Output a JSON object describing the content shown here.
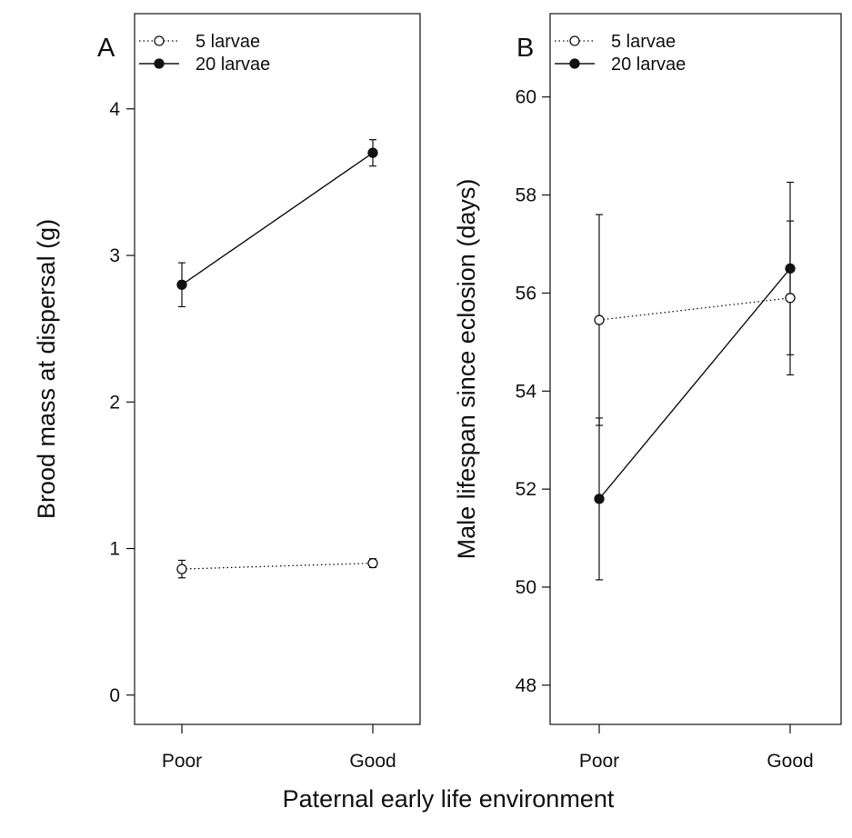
{
  "figure": {
    "xlabel": "Paternal early life environment"
  },
  "chart_data": [
    {
      "type": "line",
      "panel_label": "A",
      "title": "",
      "xlabel": "",
      "ylabel": "Brood mass at dispersal (g)",
      "categories": [
        "Poor",
        "Good"
      ],
      "ylim": [
        -0.2,
        4.65
      ],
      "yticks": [
        0,
        1,
        2,
        3,
        4
      ],
      "grid": false,
      "legend_position": "top-left",
      "series": [
        {
          "name": "5 larvae",
          "values": [
            0.86,
            0.9
          ],
          "errors": [
            0.06,
            0.03
          ],
          "marker": "open-circle",
          "line": "dotted"
        },
        {
          "name": "20 larvae",
          "values": [
            2.8,
            3.7
          ],
          "errors": [
            0.15,
            0.09
          ],
          "marker": "filled-circle",
          "line": "solid"
        }
      ]
    },
    {
      "type": "line",
      "panel_label": "B",
      "title": "",
      "xlabel": "",
      "ylabel": "Male lifespan since eclosion (days)",
      "categories": [
        "Poor",
        "Good"
      ],
      "ylim": [
        47.2,
        61.7
      ],
      "yticks": [
        48,
        50,
        52,
        54,
        56,
        58,
        60
      ],
      "grid": false,
      "legend_position": "top-left",
      "series": [
        {
          "name": "5 larvae",
          "values": [
            55.45,
            55.9
          ],
          "errors": [
            2.15,
            1.57
          ],
          "marker": "open-circle",
          "line": "dotted"
        },
        {
          "name": "20 larvae",
          "values": [
            51.8,
            56.5
          ],
          "errors": [
            1.65,
            1.76
          ],
          "marker": "filled-circle",
          "line": "solid"
        }
      ]
    }
  ]
}
